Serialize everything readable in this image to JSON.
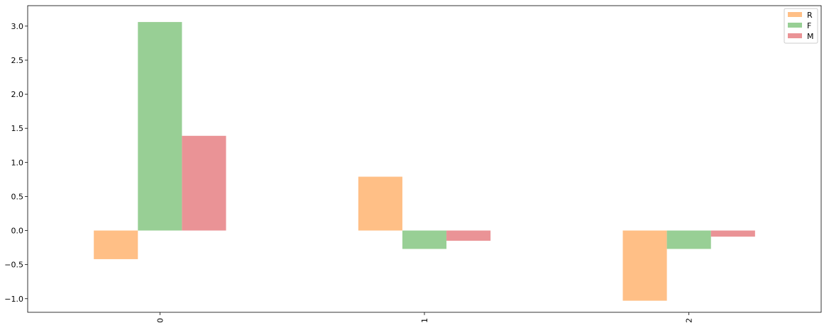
{
  "chart_data": {
    "type": "bar",
    "title": "",
    "xlabel": "",
    "ylabel": "",
    "categories": [
      "0",
      "1",
      "2"
    ],
    "ylim": [
      -1.2,
      3.3
    ],
    "yticks": [
      -1.0,
      -0.5,
      0.0,
      0.5,
      1.0,
      1.5,
      2.0,
      2.5,
      3.0
    ],
    "ytick_labels": [
      "−1.0",
      "−0.5",
      "0.0",
      "0.5",
      "1.0",
      "1.5",
      "2.0",
      "2.5",
      "3.0"
    ],
    "grid": false,
    "legend_position": "top-right",
    "series": [
      {
        "name": "R",
        "color": "#ffbf86",
        "values": [
          -0.42,
          0.79,
          -1.03
        ]
      },
      {
        "name": "F",
        "color": "#98cf95",
        "values": [
          3.06,
          -0.27,
          -0.27
        ]
      },
      {
        "name": "M",
        "color": "#ea9396",
        "values": [
          1.39,
          -0.15,
          -0.09
        ]
      }
    ]
  }
}
